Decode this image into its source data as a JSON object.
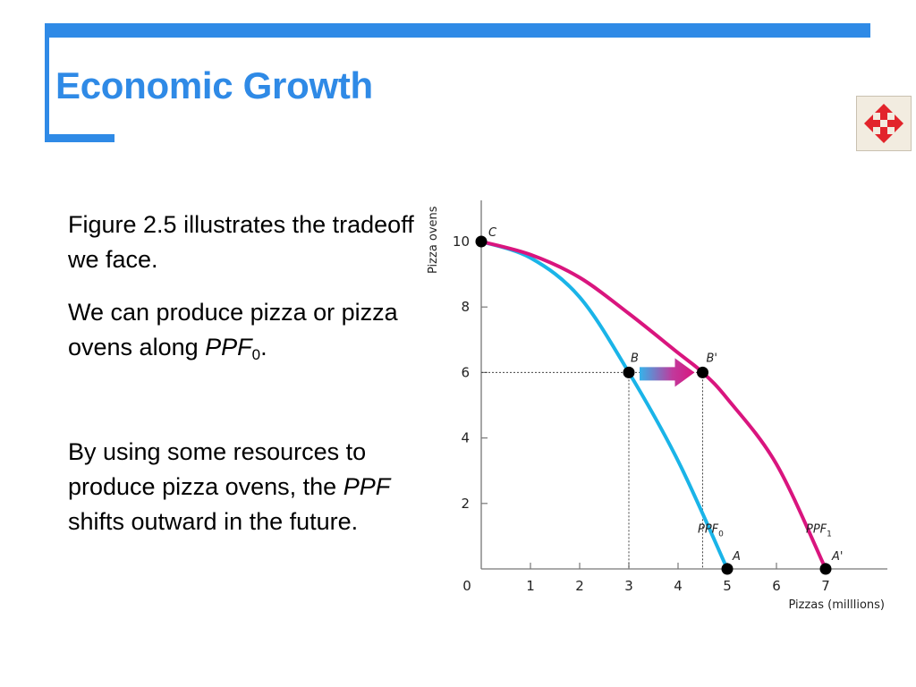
{
  "title": "Economic Growth",
  "paragraphs": {
    "p1": "Figure 2.5 illustrates the tradeoff we face.",
    "p2_before": "We can produce pizza or pizza ovens along ",
    "p2_italic": "PPF",
    "p2_sub": "0",
    "p2_after": ".",
    "p3_before": "By using some resources to produce pizza ovens, the ",
    "p3_italic": "PPF",
    "p3_after": " shifts outward in the future."
  },
  "nav_icon": "four-way-arrow-icon",
  "colors": {
    "accent": "#2f8ae6",
    "ppf0": "#1ab4e8",
    "ppf1": "#d9157e",
    "nav_arrow": "#e2242b"
  },
  "chart_data": {
    "type": "line",
    "xlabel": "Pizzas (milllions)",
    "ylabel": "Pizza ovens",
    "xlim": [
      0,
      7
    ],
    "ylim": [
      0,
      10
    ],
    "x_ticks": [
      "0",
      "1",
      "2",
      "3",
      "4",
      "5",
      "6",
      "7"
    ],
    "y_ticks": [
      "2",
      "4",
      "6",
      "8",
      "10"
    ],
    "series": [
      {
        "name": "PPF0",
        "label_main": "PPF",
        "label_sub": "0",
        "x": [
          0,
          1,
          2,
          3,
          4,
          5
        ],
        "y": [
          10,
          9.5,
          8.3,
          6,
          3.3,
          0
        ]
      },
      {
        "name": "PPF1",
        "label_main": "PPF",
        "label_sub": "1",
        "x": [
          0,
          1,
          2,
          3,
          4,
          4.5,
          5,
          6,
          7
        ],
        "y": [
          10,
          9.6,
          8.9,
          7.8,
          6.6,
          6,
          5.2,
          3.2,
          0
        ]
      }
    ],
    "points": [
      {
        "label": "C",
        "x": 0,
        "y": 10
      },
      {
        "label": "B",
        "x": 3,
        "y": 6
      },
      {
        "label": "B'",
        "x": 4.5,
        "y": 6
      },
      {
        "label": "A",
        "x": 5,
        "y": 0
      },
      {
        "label": "A'",
        "x": 7,
        "y": 0
      }
    ],
    "arrow": {
      "from": "B",
      "to": "B'"
    },
    "grid": false
  }
}
